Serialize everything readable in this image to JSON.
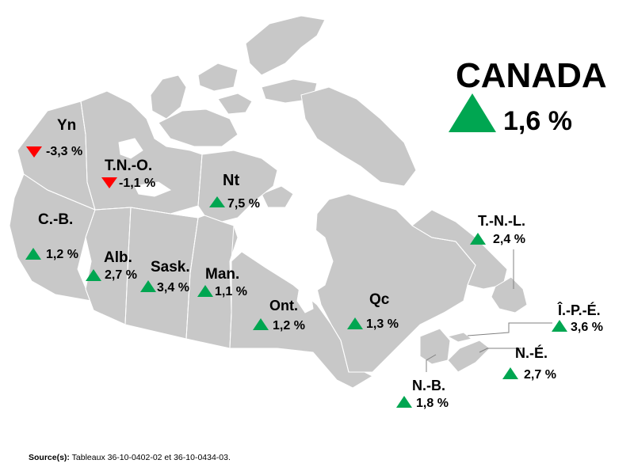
{
  "national": {
    "name": "CANADA",
    "value": "1,6 %",
    "direction": "up"
  },
  "provinces": [
    {
      "key": "yn",
      "label": "Yn",
      "value": "-3,3 %",
      "direction": "down"
    },
    {
      "key": "tno",
      "label": "T.N.-O.",
      "value": "-1,1 %",
      "direction": "down"
    },
    {
      "key": "nt",
      "label": "Nt",
      "value": "7,5 %",
      "direction": "up"
    },
    {
      "key": "cb",
      "label": "C.-B.",
      "value": "1,2 %",
      "direction": "up"
    },
    {
      "key": "alb",
      "label": "Alb.",
      "value": "2,7 %",
      "direction": "up"
    },
    {
      "key": "sask",
      "label": "Sask.",
      "value": "3,4 %",
      "direction": "up"
    },
    {
      "key": "man",
      "label": "Man.",
      "value": "1,1 %",
      "direction": "up"
    },
    {
      "key": "ont",
      "label": "Ont.",
      "value": "1,2 %",
      "direction": "up"
    },
    {
      "key": "qc",
      "label": "Qc",
      "value": "1,3 %",
      "direction": "up"
    },
    {
      "key": "tnl",
      "label": "T.-N.-L.",
      "value": "2,4 %",
      "direction": "up"
    },
    {
      "key": "ipe",
      "label": "Î.-P.-É.",
      "value": "3,6 %",
      "direction": "up"
    },
    {
      "key": "ne",
      "label": "N.-É.",
      "value": "2,7 %",
      "direction": "up"
    },
    {
      "key": "nb",
      "label": "N.-B.",
      "value": "1,8 %",
      "direction": "up"
    }
  ],
  "source": {
    "label": "Source(s):",
    "text": " Tableaux 36-10-0402-02 et 36-10-0434-03."
  },
  "colors": {
    "land": "#c8c8c8",
    "border": "#ffffff",
    "up": "#00a651",
    "down": "#ff0000"
  }
}
